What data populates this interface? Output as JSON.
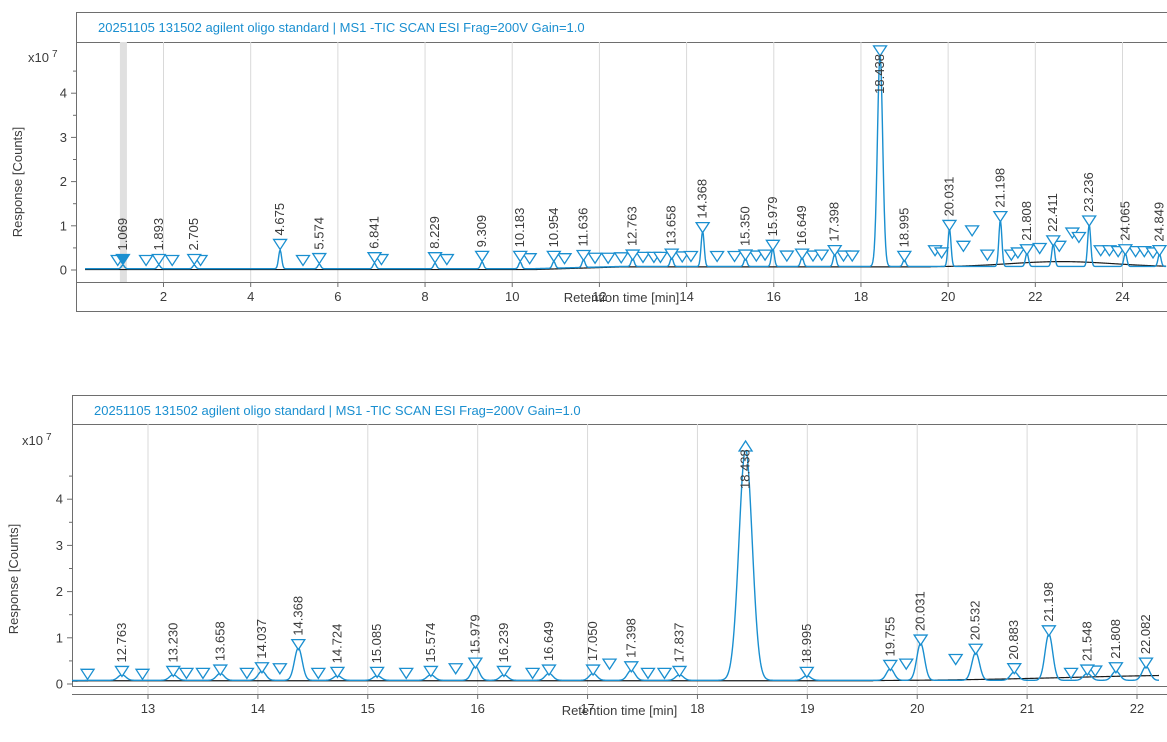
{
  "colors": {
    "signal": "#1a8fd0",
    "baseline": "#1a1a1a",
    "frame": "#6e6e6e",
    "grid": "#d9d9d9",
    "text": "#3b3b3b"
  },
  "chart_data": [
    {
      "type": "line",
      "title": "20251105 131502 agilent oligo standard | MS1 -TIC SCAN ESI Frag=200V Gain=1.0",
      "xlabel": "Retention time [min]",
      "ylabel": "Response [Counts]",
      "yexp": "x10 7",
      "xlim": [
        0.2,
        25.0
      ],
      "ylim": [
        -0.1,
        5.0
      ],
      "xticks": [
        2,
        4,
        6,
        8,
        10,
        12,
        14,
        16,
        18,
        20,
        22,
        24
      ],
      "yticks": [
        0,
        1,
        2,
        3,
        4
      ],
      "grid": true,
      "peak_labels": [
        "1.069",
        "1.893",
        "2.705",
        "4.675",
        "5.574",
        "6.841",
        "8.229",
        "9.309",
        "10.183",
        "10.954",
        "11.636",
        "12.763",
        "13.658",
        "14.368",
        "15.350",
        "15.979",
        "16.649",
        "17.398",
        "18.438",
        "18.995",
        "20.031",
        "21.198",
        "21.808",
        "22.411",
        "23.236",
        "24.065",
        "24.849"
      ],
      "peaks": [
        {
          "x": 1.069,
          "y": 0.08
        },
        {
          "x": 1.893,
          "y": 0.08
        },
        {
          "x": 2.705,
          "y": 0.08
        },
        {
          "x": 4.675,
          "y": 0.42
        },
        {
          "x": 5.574,
          "y": 0.1
        },
        {
          "x": 6.841,
          "y": 0.12
        },
        {
          "x": 8.229,
          "y": 0.12
        },
        {
          "x": 9.309,
          "y": 0.15
        },
        {
          "x": 10.183,
          "y": 0.15
        },
        {
          "x": 10.954,
          "y": 0.15
        },
        {
          "x": 11.636,
          "y": 0.17
        },
        {
          "x": 12.763,
          "y": 0.18
        },
        {
          "x": 13.658,
          "y": 0.2
        },
        {
          "x": 14.368,
          "y": 0.8
        },
        {
          "x": 15.35,
          "y": 0.18
        },
        {
          "x": 15.979,
          "y": 0.4
        },
        {
          "x": 16.649,
          "y": 0.2
        },
        {
          "x": 17.398,
          "y": 0.28
        },
        {
          "x": 18.438,
          "y": 4.8
        },
        {
          "x": 18.995,
          "y": 0.15
        },
        {
          "x": 20.031,
          "y": 0.85
        },
        {
          "x": 21.198,
          "y": 1.05
        },
        {
          "x": 21.808,
          "y": 0.3
        },
        {
          "x": 22.411,
          "y": 0.5
        },
        {
          "x": 23.236,
          "y": 0.95
        },
        {
          "x": 24.065,
          "y": 0.3
        },
        {
          "x": 24.849,
          "y": 0.28
        }
      ],
      "extra_markers": [
        {
          "x": 0.95,
          "y": 0.08
        },
        {
          "x": 1.6,
          "y": 0.08
        },
        {
          "x": 2.2,
          "y": 0.08
        },
        {
          "x": 2.85,
          "y": 0.08
        },
        {
          "x": 5.2,
          "y": 0.08
        },
        {
          "x": 7.0,
          "y": 0.1
        },
        {
          "x": 8.5,
          "y": 0.1
        },
        {
          "x": 10.4,
          "y": 0.12
        },
        {
          "x": 11.2,
          "y": 0.12
        },
        {
          "x": 11.9,
          "y": 0.13
        },
        {
          "x": 12.2,
          "y": 0.13
        },
        {
          "x": 12.5,
          "y": 0.14
        },
        {
          "x": 13.0,
          "y": 0.15
        },
        {
          "x": 13.25,
          "y": 0.15
        },
        {
          "x": 13.4,
          "y": 0.15
        },
        {
          "x": 13.9,
          "y": 0.16
        },
        {
          "x": 14.1,
          "y": 0.17
        },
        {
          "x": 14.7,
          "y": 0.17
        },
        {
          "x": 15.1,
          "y": 0.17
        },
        {
          "x": 15.6,
          "y": 0.18
        },
        {
          "x": 15.8,
          "y": 0.2
        },
        {
          "x": 16.3,
          "y": 0.18
        },
        {
          "x": 16.9,
          "y": 0.18
        },
        {
          "x": 17.1,
          "y": 0.2
        },
        {
          "x": 17.6,
          "y": 0.18
        },
        {
          "x": 17.8,
          "y": 0.18
        },
        {
          "x": 19.7,
          "y": 0.3
        },
        {
          "x": 19.85,
          "y": 0.25
        },
        {
          "x": 20.35,
          "y": 0.4
        },
        {
          "x": 20.55,
          "y": 0.75
        },
        {
          "x": 20.9,
          "y": 0.2
        },
        {
          "x": 21.45,
          "y": 0.2
        },
        {
          "x": 21.6,
          "y": 0.25
        },
        {
          "x": 22.1,
          "y": 0.35
        },
        {
          "x": 22.55,
          "y": 0.4
        },
        {
          "x": 22.85,
          "y": 0.7
        },
        {
          "x": 23.0,
          "y": 0.6
        },
        {
          "x": 23.5,
          "y": 0.3
        },
        {
          "x": 23.7,
          "y": 0.3
        },
        {
          "x": 23.9,
          "y": 0.28
        },
        {
          "x": 24.3,
          "y": 0.28
        },
        {
          "x": 24.5,
          "y": 0.28
        },
        {
          "x": 24.7,
          "y": 0.25
        }
      ],
      "highlight_x": 1.069
    },
    {
      "type": "line",
      "title": "20251105 131502 agilent oligo standard | MS1 -TIC SCAN ESI Frag=200V Gain=1.0",
      "xlabel": "Retention time [min]",
      "ylabel": "Response [Counts]",
      "yexp": "x10 7",
      "xlim": [
        12.3,
        22.2
      ],
      "ylim": [
        -0.1,
        5.0
      ],
      "xticks": [
        13,
        14,
        15,
        16,
        17,
        18,
        19,
        20,
        21,
        22
      ],
      "yticks": [
        0,
        1,
        2,
        3,
        4
      ],
      "grid": true,
      "peak_labels": [
        "12.763",
        "13.230",
        "13.658",
        "14.037",
        "14.368",
        "14.724",
        "15.085",
        "15.574",
        "15.979",
        "16.239",
        "16.649",
        "17.050",
        "17.398",
        "17.837",
        "18.438",
        "18.995",
        "19.755",
        "20.031",
        "20.532",
        "20.883",
        "21.198",
        "21.548",
        "21.808",
        "22.082"
      ],
      "peaks": [
        {
          "x": 12.763,
          "y": 0.12
        },
        {
          "x": 13.23,
          "y": 0.12
        },
        {
          "x": 13.658,
          "y": 0.15
        },
        {
          "x": 14.037,
          "y": 0.2
        },
        {
          "x": 14.368,
          "y": 0.7
        },
        {
          "x": 14.724,
          "y": 0.1
        },
        {
          "x": 15.085,
          "y": 0.1
        },
        {
          "x": 15.574,
          "y": 0.12
        },
        {
          "x": 15.979,
          "y": 0.3
        },
        {
          "x": 16.239,
          "y": 0.12
        },
        {
          "x": 16.649,
          "y": 0.15
        },
        {
          "x": 17.05,
          "y": 0.15
        },
        {
          "x": 17.398,
          "y": 0.22
        },
        {
          "x": 17.837,
          "y": 0.12
        },
        {
          "x": 18.438,
          "y": 5.0
        },
        {
          "x": 18.995,
          "y": 0.1
        },
        {
          "x": 19.755,
          "y": 0.25
        },
        {
          "x": 20.031,
          "y": 0.8
        },
        {
          "x": 20.532,
          "y": 0.6
        },
        {
          "x": 20.883,
          "y": 0.18
        },
        {
          "x": 21.198,
          "y": 1.0
        },
        {
          "x": 21.548,
          "y": 0.15
        },
        {
          "x": 21.808,
          "y": 0.2
        },
        {
          "x": 22.082,
          "y": 0.3
        }
      ],
      "extra_markers": [
        {
          "x": 12.45,
          "y": 0.08
        },
        {
          "x": 12.95,
          "y": 0.08
        },
        {
          "x": 13.35,
          "y": 0.1
        },
        {
          "x": 13.5,
          "y": 0.1
        },
        {
          "x": 13.9,
          "y": 0.1
        },
        {
          "x": 14.2,
          "y": 0.2
        },
        {
          "x": 14.55,
          "y": 0.1
        },
        {
          "x": 15.35,
          "y": 0.1
        },
        {
          "x": 15.8,
          "y": 0.2
        },
        {
          "x": 16.5,
          "y": 0.1
        },
        {
          "x": 17.2,
          "y": 0.3
        },
        {
          "x": 17.55,
          "y": 0.1
        },
        {
          "x": 17.7,
          "y": 0.1
        },
        {
          "x": 19.9,
          "y": 0.3
        },
        {
          "x": 20.35,
          "y": 0.4
        },
        {
          "x": 21.4,
          "y": 0.1
        },
        {
          "x": 21.62,
          "y": 0.15
        }
      ],
      "highlight_x": null
    }
  ]
}
